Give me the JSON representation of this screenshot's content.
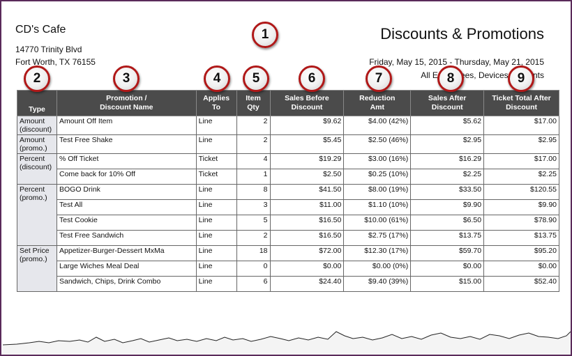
{
  "report": {
    "company": "CD's Cafe",
    "address_line1": "14770 Trinity Blvd",
    "address_line2": "Fort Worth, TX 76155",
    "title": "Discounts & Promotions",
    "date_range": "Friday, May 15, 2015 - Thursday, May 21, 2015",
    "filter": "All Employees, Devices & Events"
  },
  "callouts": [
    "1",
    "2",
    "3",
    "4",
    "5",
    "6",
    "7",
    "8",
    "9"
  ],
  "table": {
    "headers": [
      "Type",
      "Promotion / Discount Name",
      "Applies To",
      "Item Qty",
      "Sales Before Discount",
      "Reduction Amt",
      "Sales After Discount",
      "Ticket Total After Discount"
    ],
    "header_lines": {
      "name": [
        "Promotion /",
        "Discount Name"
      ],
      "applies": [
        "Applies",
        "To"
      ],
      "qty": [
        "Item",
        "Qty"
      ],
      "before": [
        "Sales Before",
        "Discount"
      ],
      "reduction": [
        "Reduction",
        "Amt"
      ],
      "after": [
        "Sales After",
        "Discount"
      ],
      "ticket": [
        "Ticket Total After",
        "Discount"
      ]
    },
    "groups": [
      {
        "type": [
          "Amount",
          "(discount)"
        ],
        "rows": [
          {
            "name": "Amount Off Item",
            "applies": "Line",
            "qty": "2",
            "before": "$9.62",
            "reduction": "$4.00 (42%)",
            "after": "$5.62",
            "ticket": "$17.00"
          }
        ]
      },
      {
        "type": [
          "Amount",
          "(promo.)"
        ],
        "rows": [
          {
            "name": "Test Free Shake",
            "applies": "Line",
            "qty": "2",
            "before": "$5.45",
            "reduction": "$2.50 (46%)",
            "after": "$2.95",
            "ticket": "$2.95"
          }
        ]
      },
      {
        "type": [
          "Percent",
          "(discount)"
        ],
        "rows": [
          {
            "name": "% Off Ticket",
            "applies": "Ticket",
            "qty": "4",
            "before": "$19.29",
            "reduction": "$3.00 (16%)",
            "after": "$16.29",
            "ticket": "$17.00"
          },
          {
            "name": "Come back for 10% Off",
            "applies": "Ticket",
            "qty": "1",
            "before": "$2.50",
            "reduction": "$0.25 (10%)",
            "after": "$2.25",
            "ticket": "$2.25"
          }
        ]
      },
      {
        "type": [
          "Percent",
          "(promo.)"
        ],
        "rows": [
          {
            "name": "BOGO Drink",
            "applies": "Line",
            "qty": "8",
            "before": "$41.50",
            "reduction": "$8.00 (19%)",
            "after": "$33.50",
            "ticket": "$120.55"
          },
          {
            "name": "Test All",
            "applies": "Line",
            "qty": "3",
            "before": "$11.00",
            "reduction": "$1.10 (10%)",
            "after": "$9.90",
            "ticket": "$9.90"
          },
          {
            "name": "Test Cookie",
            "applies": "Line",
            "qty": "5",
            "before": "$16.50",
            "reduction": "$10.00 (61%)",
            "after": "$6.50",
            "ticket": "$78.90"
          },
          {
            "name": "Test Free Sandwich",
            "applies": "Line",
            "qty": "2",
            "before": "$16.50",
            "reduction": "$2.75 (17%)",
            "after": "$13.75",
            "ticket": "$13.75"
          }
        ]
      },
      {
        "type": [
          "Set Price",
          "(promo.)"
        ],
        "rows": [
          {
            "name": "Appetizer-Burger-Dessert MxMa",
            "applies": "Line",
            "qty": "18",
            "before": "$72.00",
            "reduction": "$12.30 (17%)",
            "after": "$59.70",
            "ticket": "$95.20"
          },
          {
            "name": "Large Wiches Meal Deal",
            "applies": "Line",
            "qty": "0",
            "before": "$0.00",
            "reduction": "$0.00 (0%)",
            "after": "$0.00",
            "ticket": "$0.00"
          },
          {
            "name": "Sandwich, Chips, Drink Combo",
            "applies": "Line",
            "qty": "6",
            "before": "$24.40",
            "reduction": "$9.40 (39%)",
            "after": "$15.00",
            "ticket": "$52.40"
          }
        ]
      }
    ]
  },
  "colors": {
    "header_bg": "#4b4b4b",
    "type_bg": "#e6e7ec",
    "frame": "#5a2a5a",
    "badge_ring": "#b01818"
  }
}
